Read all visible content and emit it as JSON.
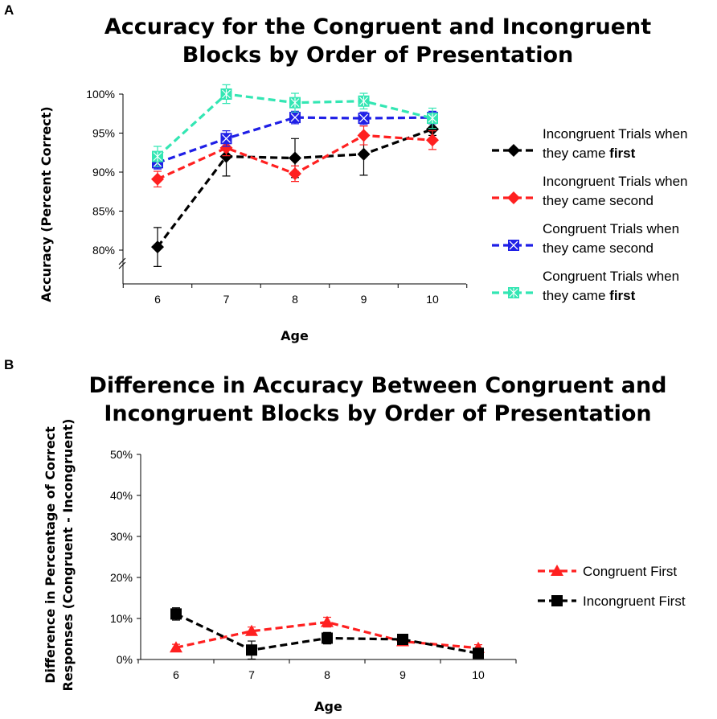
{
  "panel_a_label": "A",
  "panel_b_label": "B",
  "chart_data": [
    {
      "type": "line",
      "title_line1": "Accuracy for the Congruent and Incongruent",
      "title_line2": "Blocks by Order of Presentation",
      "xlabel": "Age",
      "ylabel": "Accuracy (Percent Correct)",
      "x": [
        6,
        7,
        8,
        9,
        10
      ],
      "x_tick_labels": [
        "6",
        "7",
        "8",
        "9",
        "10"
      ],
      "y_tick_labels": [
        "80%",
        "85%",
        "90%",
        "95%",
        "100%"
      ],
      "ylim": [
        80,
        100
      ],
      "axis_break": true,
      "series": [
        {
          "name": "Incongruent Trials when they came first",
          "legend_line1": "Incongruent Trials when",
          "legend_line2_prefix": "they came ",
          "legend_line2_bold": "first",
          "color": "#000000",
          "marker": "diamond",
          "values": [
            80.4,
            92.0,
            91.8,
            92.3,
            95.5
          ],
          "errors": [
            2.5,
            2.5,
            2.5,
            2.7,
            0.8
          ]
        },
        {
          "name": "Incongruent Trials when they came second",
          "legend_line1": "Incongruent Trials when",
          "legend_line2_prefix": "they came second",
          "legend_line2_bold": "",
          "color": "#ff2020",
          "marker": "diamond",
          "values": [
            89.1,
            93.1,
            89.8,
            94.7,
            94.1
          ],
          "errors": [
            1.0,
            1.0,
            1.0,
            1.2,
            1.2
          ]
        },
        {
          "name": "Congruent Trials when they came second",
          "legend_line1": "Congruent Trials when",
          "legend_line2_prefix": "they came second",
          "legend_line2_bold": "",
          "color": "#1f1fe6",
          "marker": "square-x",
          "values": [
            91.2,
            94.3,
            97.0,
            96.9,
            97.0
          ],
          "errors": [
            0.8,
            1.0,
            0.8,
            0.8,
            0.8
          ]
        },
        {
          "name": "Congruent Trials when they came first",
          "legend_line1": "Congruent Trials when",
          "legend_line2_prefix": "they came ",
          "legend_line2_bold": "first",
          "color": "#33e6b3",
          "marker": "square-asterisk",
          "values": [
            92.0,
            100.0,
            98.9,
            99.1,
            96.9
          ],
          "errors": [
            1.3,
            1.2,
            1.2,
            1.0,
            1.3
          ]
        }
      ]
    },
    {
      "type": "line",
      "title_line1": "Difference in Accuracy Between Congruent and",
      "title_line2": "Incongruent Blocks by Order of Presentation",
      "xlabel": "Age",
      "ylabel_line1": "Difference in Percentage of Correct",
      "ylabel_line2": "Responses (Congruent - Incongruent)",
      "x": [
        6,
        7,
        8,
        9,
        10
      ],
      "x_tick_labels": [
        "6",
        "7",
        "8",
        "9",
        "10"
      ],
      "y_tick_labels": [
        "0%",
        "10%",
        "20%",
        "30%",
        "40%",
        "50%"
      ],
      "ylim": [
        0,
        50
      ],
      "series": [
        {
          "name": "Congruent First",
          "color": "#ff2020",
          "marker": "triangle",
          "values": [
            2.9,
            6.9,
            9.1,
            4.4,
            2.8
          ],
          "errors": [
            0.8,
            1.0,
            1.2,
            0.8,
            0.8
          ]
        },
        {
          "name": "Incongruent First",
          "color": "#000000",
          "marker": "square",
          "values": [
            11.1,
            2.3,
            5.2,
            4.9,
            1.5
          ],
          "errors": [
            1.5,
            2.2,
            1.4,
            0.8,
            0.8
          ]
        }
      ]
    }
  ]
}
